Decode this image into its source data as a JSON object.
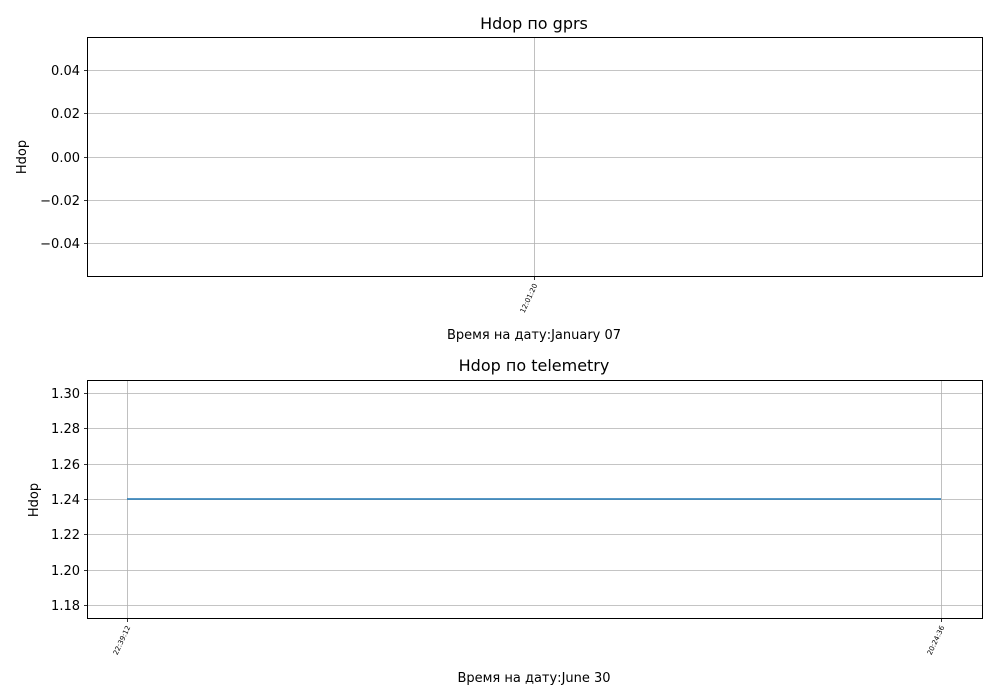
{
  "chart_data": [
    {
      "type": "line",
      "title": "Hdop по gprs",
      "xlabel": "Время на дату:January 07",
      "ylabel": "Hdop",
      "ylim": [
        -0.055,
        0.055
      ],
      "yticks": [
        0.04,
        0.02,
        0.0,
        -0.02,
        -0.04
      ],
      "yticklabels": [
        "0.04",
        "0.02",
        "0.00",
        "−0.02",
        "−0.04"
      ],
      "xticklabels": [
        "12:01:20"
      ],
      "grid": true,
      "series": [
        {
          "x": [],
          "y": [],
          "color": "#1f77b4"
        }
      ]
    },
    {
      "type": "line",
      "title": "Hdop по telemetry",
      "xlabel": "Время на дату:June 30",
      "ylabel": "Hdop",
      "ylim": [
        1.1725,
        1.3075
      ],
      "yticks": [
        1.3,
        1.28,
        1.26,
        1.24,
        1.22,
        1.2,
        1.18
      ],
      "yticklabels": [
        "1.30",
        "1.28",
        "1.26",
        "1.24",
        "1.22",
        "1.20",
        "1.18"
      ],
      "xticklabels": [
        "22:39:12",
        "20:24:36"
      ],
      "grid": true,
      "series": [
        {
          "x": [
            "22:39:12",
            "20:24:36"
          ],
          "y": [
            1.24,
            1.24
          ],
          "color": "#1f77b4"
        }
      ]
    }
  ]
}
